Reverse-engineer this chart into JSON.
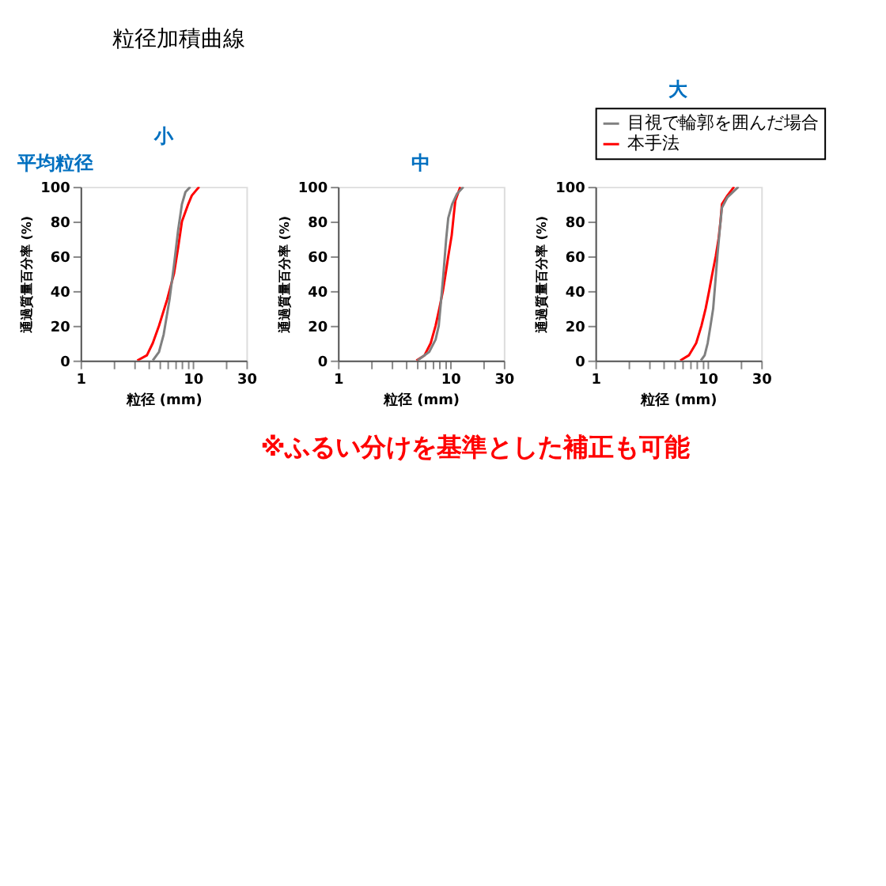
{
  "chart_data": [
    {
      "type": "line",
      "title": "小",
      "xlabel": "粒径 (mm)",
      "ylabel": "通過質量百分率 (%)",
      "log": "x",
      "grid": false,
      "annotations": [
        "平均粒径",
        "粒径加積曲線",
        "※ふるい分けを基準とした補正も可能"
      ],
      "xlim": [
        1,
        30
      ],
      "xticks": [
        1,
        {
          "value": 2,
          "label": null
        },
        {
          "value": 3,
          "label": null
        },
        {
          "value": 4,
          "label": null
        },
        {
          "value": 5,
          "label": null
        },
        {
          "value": 6,
          "label": null
        },
        {
          "value": 7,
          "label": null
        },
        {
          "value": 8,
          "label": null
        },
        {
          "value": 9,
          "label": null
        },
        10,
        {
          "value": 20,
          "label": null
        },
        30
      ],
      "ylim": [
        0,
        100
      ],
      "yticks": [
        0,
        20,
        40,
        60,
        80,
        100
      ],
      "series": [
        {
          "color": "#808080",
          "x": [
            4.4,
            5.0,
            5.5,
            6.2,
            6.8,
            7.4,
            8.0,
            8.6,
            9.5
          ],
          "values": [
            0,
            5,
            15,
            35,
            55,
            75,
            90,
            97,
            100
          ]
        },
        {
          "color": "#ff0000",
          "x": [
            3.2,
            3.9,
            4.4,
            5.0,
            5.9,
            6.8,
            7.4,
            8.0,
            9.1,
            9.8,
            11.4
          ],
          "values": [
            0,
            3,
            10,
            20,
            35,
            50,
            65,
            80,
            90,
            95,
            100
          ]
        }
      ]
    },
    {
      "type": "line",
      "title": "中",
      "xlabel": "粒径 (mm)",
      "ylabel": "通過質量百分率 (%)",
      "log": "x",
      "grid": false,
      "xlim": [
        1,
        30
      ],
      "xticks": [
        1,
        {
          "value": 2,
          "label": null
        },
        {
          "value": 3,
          "label": null
        },
        {
          "value": 4,
          "label": null
        },
        {
          "value": 5,
          "label": null
        },
        {
          "value": 6,
          "label": null
        },
        {
          "value": 7,
          "label": null
        },
        {
          "value": 8,
          "label": null
        },
        {
          "value": 9,
          "label": null
        },
        10,
        {
          "value": 20,
          "label": null
        },
        30
      ],
      "ylim": [
        0,
        100
      ],
      "yticks": [
        0,
        20,
        40,
        60,
        80,
        100
      ],
      "series": [
        {
          "color": "#808080",
          "x": [
            5.1,
            6.5,
            7.4,
            7.9,
            8.3,
            8.7,
            9.2,
            9.6,
            10.4,
            11.5,
            13.1
          ],
          "values": [
            0,
            5,
            12,
            20,
            35,
            50,
            70,
            82,
            90,
            96,
            100
          ]
        },
        {
          "color": "#ff0000",
          "x": [
            5.0,
            5.9,
            6.7,
            7.4,
            8.0,
            8.6,
            9.1,
            9.6,
            10.3,
            10.8,
            11.1,
            12.3
          ],
          "values": [
            0,
            3,
            10,
            20,
            30,
            40,
            50,
            60,
            72,
            85,
            92,
            100
          ]
        }
      ]
    },
    {
      "type": "line",
      "title": "大",
      "xlabel": "粒径 (mm)",
      "ylabel": "通過質量百分率 (%)",
      "log": "x",
      "grid": false,
      "legend": "top",
      "xlim": [
        1,
        30
      ],
      "xticks": [
        1,
        {
          "value": 2,
          "label": null
        },
        {
          "value": 3,
          "label": null
        },
        {
          "value": 4,
          "label": null
        },
        {
          "value": 5,
          "label": null
        },
        {
          "value": 6,
          "label": null
        },
        {
          "value": 7,
          "label": null
        },
        {
          "value": 8,
          "label": null
        },
        {
          "value": 9,
          "label": null
        },
        10,
        {
          "value": 20,
          "label": null
        },
        30
      ],
      "ylim": [
        0,
        100
      ],
      "yticks": [
        0,
        20,
        40,
        60,
        80,
        100
      ],
      "series": [
        {
          "name": "目視で輪郭を囲んだ場合",
          "color": "#808080",
          "x": [
            8.7,
            9.4,
            10,
            10.6,
            11.2,
            11.7,
            12.2,
            12.8,
            13.4,
            15,
            18.8
          ],
          "values": [
            0,
            3,
            10,
            20,
            30,
            45,
            60,
            75,
            88,
            94,
            100
          ]
        },
        {
          "name": "本手法",
          "color": "#ff0000",
          "x": [
            5.7,
            6.8,
            7.9,
            8.8,
            9.6,
            10.3,
            11,
            11.8,
            12.5,
            13,
            13.4,
            15,
            17.2
          ],
          "values": [
            0,
            3,
            10,
            20,
            30,
            40,
            50,
            60,
            70,
            80,
            90,
            95,
            100
          ]
        }
      ]
    }
  ]
}
